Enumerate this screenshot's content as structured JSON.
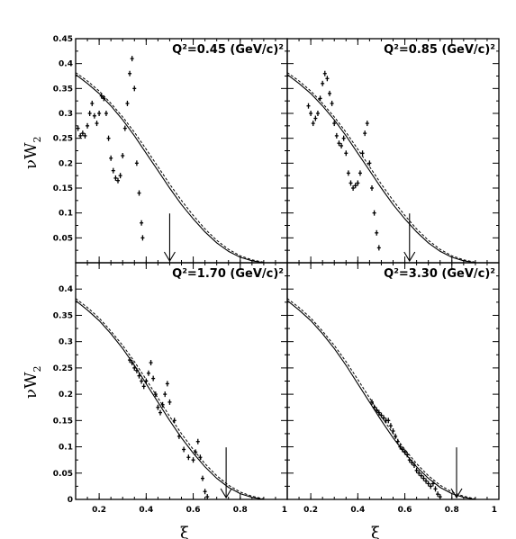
{
  "chart_data": {
    "type": "scatter",
    "xlabel": "ξ",
    "ylabel": "νW",
    "ylabel_sub": "2",
    "xlim": [
      0.1,
      1.0
    ],
    "ylim": [
      0,
      0.45
    ],
    "x_ticks": [
      "0.2",
      "0.4",
      "0.6",
      "0.8",
      "1"
    ],
    "y_ticks": [
      "0.05",
      "0.1",
      "0.15",
      "0.2",
      "0.25",
      "0.3",
      "0.35",
      "0.4",
      "0.45"
    ],
    "y_tick_values": [
      0.05,
      0.1,
      0.15,
      0.2,
      0.25,
      0.3,
      0.35,
      0.4,
      0.45
    ],
    "y_zero_label": "0",
    "panels": [
      {
        "title": "Q²=0.45 (GeV/c)²",
        "arrow_x": 0.5,
        "curve_solid": [
          [
            0.1,
            0.378
          ],
          [
            0.15,
            0.36
          ],
          [
            0.2,
            0.34
          ],
          [
            0.25,
            0.315
          ],
          [
            0.3,
            0.287
          ],
          [
            0.35,
            0.255
          ],
          [
            0.4,
            0.22
          ],
          [
            0.45,
            0.185
          ],
          [
            0.5,
            0.15
          ],
          [
            0.55,
            0.117
          ],
          [
            0.6,
            0.088
          ],
          [
            0.65,
            0.062
          ],
          [
            0.7,
            0.04
          ],
          [
            0.75,
            0.023
          ],
          [
            0.8,
            0.011
          ],
          [
            0.85,
            0.004
          ],
          [
            0.9,
            0.0
          ]
        ],
        "curve_dashed": [
          [
            0.1,
            0.382
          ],
          [
            0.15,
            0.365
          ],
          [
            0.2,
            0.345
          ],
          [
            0.25,
            0.32
          ],
          [
            0.3,
            0.293
          ],
          [
            0.35,
            0.262
          ],
          [
            0.4,
            0.228
          ],
          [
            0.45,
            0.193
          ],
          [
            0.5,
            0.158
          ],
          [
            0.55,
            0.125
          ],
          [
            0.6,
            0.095
          ],
          [
            0.65,
            0.068
          ],
          [
            0.7,
            0.045
          ],
          [
            0.75,
            0.027
          ],
          [
            0.8,
            0.014
          ],
          [
            0.85,
            0.006
          ],
          [
            0.9,
            0.001
          ]
        ],
        "points": [
          [
            0.11,
            0.27
          ],
          [
            0.12,
            0.255
          ],
          [
            0.13,
            0.26
          ],
          [
            0.14,
            0.255
          ],
          [
            0.15,
            0.275
          ],
          [
            0.16,
            0.3
          ],
          [
            0.17,
            0.32
          ],
          [
            0.18,
            0.295
          ],
          [
            0.19,
            0.28
          ],
          [
            0.2,
            0.3
          ],
          [
            0.21,
            0.335
          ],
          [
            0.22,
            0.33
          ],
          [
            0.23,
            0.3
          ],
          [
            0.24,
            0.25
          ],
          [
            0.25,
            0.21
          ],
          [
            0.26,
            0.185
          ],
          [
            0.27,
            0.17
          ],
          [
            0.28,
            0.165
          ],
          [
            0.29,
            0.175
          ],
          [
            0.3,
            0.215
          ],
          [
            0.31,
            0.27
          ],
          [
            0.32,
            0.32
          ],
          [
            0.33,
            0.38
          ],
          [
            0.34,
            0.41
          ],
          [
            0.35,
            0.35
          ],
          [
            0.36,
            0.2
          ],
          [
            0.37,
            0.14
          ],
          [
            0.38,
            0.08
          ],
          [
            0.385,
            0.05
          ]
        ]
      },
      {
        "title": "Q²=0.85 (GeV/c)²",
        "arrow_x": 0.62,
        "curve_solid": [
          [
            0.1,
            0.378
          ],
          [
            0.15,
            0.36
          ],
          [
            0.2,
            0.34
          ],
          [
            0.25,
            0.315
          ],
          [
            0.3,
            0.287
          ],
          [
            0.35,
            0.255
          ],
          [
            0.4,
            0.22
          ],
          [
            0.45,
            0.185
          ],
          [
            0.5,
            0.15
          ],
          [
            0.55,
            0.117
          ],
          [
            0.6,
            0.088
          ],
          [
            0.65,
            0.062
          ],
          [
            0.7,
            0.04
          ],
          [
            0.75,
            0.023
          ],
          [
            0.8,
            0.011
          ],
          [
            0.85,
            0.004
          ],
          [
            0.9,
            0.0
          ]
        ],
        "curve_dashed": [
          [
            0.1,
            0.382
          ],
          [
            0.15,
            0.365
          ],
          [
            0.2,
            0.345
          ],
          [
            0.25,
            0.32
          ],
          [
            0.3,
            0.293
          ],
          [
            0.35,
            0.262
          ],
          [
            0.4,
            0.228
          ],
          [
            0.45,
            0.193
          ],
          [
            0.5,
            0.158
          ],
          [
            0.55,
            0.125
          ],
          [
            0.6,
            0.095
          ],
          [
            0.65,
            0.068
          ],
          [
            0.7,
            0.045
          ],
          [
            0.75,
            0.027
          ],
          [
            0.8,
            0.014
          ],
          [
            0.85,
            0.006
          ],
          [
            0.9,
            0.001
          ]
        ],
        "points": [
          [
            0.19,
            0.315
          ],
          [
            0.2,
            0.3
          ],
          [
            0.21,
            0.28
          ],
          [
            0.22,
            0.29
          ],
          [
            0.23,
            0.3
          ],
          [
            0.24,
            0.33
          ],
          [
            0.25,
            0.36
          ],
          [
            0.26,
            0.38
          ],
          [
            0.27,
            0.37
          ],
          [
            0.28,
            0.34
          ],
          [
            0.29,
            0.32
          ],
          [
            0.3,
            0.28
          ],
          [
            0.31,
            0.255
          ],
          [
            0.32,
            0.24
          ],
          [
            0.33,
            0.235
          ],
          [
            0.34,
            0.25
          ],
          [
            0.35,
            0.22
          ],
          [
            0.36,
            0.18
          ],
          [
            0.37,
            0.16
          ],
          [
            0.38,
            0.15
          ],
          [
            0.39,
            0.155
          ],
          [
            0.4,
            0.16
          ],
          [
            0.41,
            0.18
          ],
          [
            0.42,
            0.22
          ],
          [
            0.43,
            0.26
          ],
          [
            0.44,
            0.28
          ],
          [
            0.45,
            0.2
          ],
          [
            0.46,
            0.15
          ],
          [
            0.47,
            0.1
          ],
          [
            0.48,
            0.06
          ],
          [
            0.49,
            0.03
          ]
        ]
      },
      {
        "title": "Q²=1.70 (GeV/c)²",
        "arrow_x": 0.74,
        "curve_solid": [
          [
            0.1,
            0.378
          ],
          [
            0.15,
            0.36
          ],
          [
            0.2,
            0.34
          ],
          [
            0.25,
            0.315
          ],
          [
            0.3,
            0.287
          ],
          [
            0.35,
            0.255
          ],
          [
            0.4,
            0.22
          ],
          [
            0.45,
            0.185
          ],
          [
            0.5,
            0.15
          ],
          [
            0.55,
            0.117
          ],
          [
            0.6,
            0.088
          ],
          [
            0.65,
            0.062
          ],
          [
            0.7,
            0.04
          ],
          [
            0.75,
            0.023
          ],
          [
            0.8,
            0.011
          ],
          [
            0.85,
            0.004
          ],
          [
            0.9,
            0.0
          ]
        ],
        "curve_dashed": [
          [
            0.1,
            0.382
          ],
          [
            0.15,
            0.365
          ],
          [
            0.2,
            0.345
          ],
          [
            0.25,
            0.32
          ],
          [
            0.3,
            0.293
          ],
          [
            0.35,
            0.262
          ],
          [
            0.4,
            0.228
          ],
          [
            0.45,
            0.193
          ],
          [
            0.5,
            0.158
          ],
          [
            0.55,
            0.125
          ],
          [
            0.6,
            0.095
          ],
          [
            0.65,
            0.068
          ],
          [
            0.7,
            0.045
          ],
          [
            0.75,
            0.027
          ],
          [
            0.8,
            0.014
          ],
          [
            0.85,
            0.006
          ],
          [
            0.9,
            0.001
          ]
        ],
        "points": [
          [
            0.33,
            0.265
          ],
          [
            0.34,
            0.26
          ],
          [
            0.35,
            0.25
          ],
          [
            0.36,
            0.245
          ],
          [
            0.37,
            0.235
          ],
          [
            0.38,
            0.225
          ],
          [
            0.39,
            0.215
          ],
          [
            0.4,
            0.225
          ],
          [
            0.41,
            0.24
          ],
          [
            0.42,
            0.26
          ],
          [
            0.43,
            0.23
          ],
          [
            0.44,
            0.2
          ],
          [
            0.45,
            0.175
          ],
          [
            0.46,
            0.165
          ],
          [
            0.47,
            0.18
          ],
          [
            0.48,
            0.2
          ],
          [
            0.49,
            0.22
          ],
          [
            0.5,
            0.185
          ],
          [
            0.52,
            0.15
          ],
          [
            0.54,
            0.12
          ],
          [
            0.56,
            0.095
          ],
          [
            0.58,
            0.08
          ],
          [
            0.6,
            0.075
          ],
          [
            0.61,
            0.09
          ],
          [
            0.62,
            0.11
          ],
          [
            0.63,
            0.08
          ],
          [
            0.64,
            0.04
          ],
          [
            0.65,
            0.015
          ],
          [
            0.66,
            0.005
          ]
        ]
      },
      {
        "title": "Q²=3.30 (GeV/c)²",
        "arrow_x": 0.82,
        "curve_solid": [
          [
            0.1,
            0.378
          ],
          [
            0.15,
            0.36
          ],
          [
            0.2,
            0.34
          ],
          [
            0.25,
            0.315
          ],
          [
            0.3,
            0.287
          ],
          [
            0.35,
            0.255
          ],
          [
            0.4,
            0.22
          ],
          [
            0.45,
            0.185
          ],
          [
            0.5,
            0.15
          ],
          [
            0.55,
            0.117
          ],
          [
            0.6,
            0.088
          ],
          [
            0.65,
            0.062
          ],
          [
            0.7,
            0.04
          ],
          [
            0.75,
            0.023
          ],
          [
            0.8,
            0.011
          ],
          [
            0.85,
            0.004
          ],
          [
            0.9,
            0.0
          ]
        ],
        "curve_dashed": [
          [
            0.1,
            0.382
          ],
          [
            0.15,
            0.365
          ],
          [
            0.2,
            0.345
          ],
          [
            0.25,
            0.32
          ],
          [
            0.3,
            0.293
          ],
          [
            0.35,
            0.262
          ],
          [
            0.4,
            0.228
          ],
          [
            0.45,
            0.193
          ],
          [
            0.5,
            0.158
          ],
          [
            0.55,
            0.125
          ],
          [
            0.6,
            0.095
          ],
          [
            0.65,
            0.068
          ],
          [
            0.7,
            0.045
          ],
          [
            0.75,
            0.027
          ],
          [
            0.8,
            0.014
          ],
          [
            0.85,
            0.006
          ],
          [
            0.9,
            0.001
          ]
        ],
        "points": [
          [
            0.46,
            0.185
          ],
          [
            0.47,
            0.175
          ],
          [
            0.48,
            0.17
          ],
          [
            0.49,
            0.165
          ],
          [
            0.5,
            0.16
          ],
          [
            0.51,
            0.155
          ],
          [
            0.52,
            0.15
          ],
          [
            0.53,
            0.15
          ],
          [
            0.54,
            0.14
          ],
          [
            0.55,
            0.13
          ],
          [
            0.56,
            0.12
          ],
          [
            0.57,
            0.11
          ],
          [
            0.58,
            0.1
          ],
          [
            0.59,
            0.095
          ],
          [
            0.6,
            0.09
          ],
          [
            0.61,
            0.085
          ],
          [
            0.62,
            0.075
          ],
          [
            0.63,
            0.07
          ],
          [
            0.64,
            0.065
          ],
          [
            0.65,
            0.055
          ],
          [
            0.66,
            0.05
          ],
          [
            0.67,
            0.045
          ],
          [
            0.68,
            0.04
          ],
          [
            0.69,
            0.035
          ],
          [
            0.7,
            0.03
          ],
          [
            0.71,
            0.025
          ],
          [
            0.72,
            0.03
          ],
          [
            0.73,
            0.02
          ],
          [
            0.74,
            0.01
          ],
          [
            0.75,
            0.005
          ]
        ]
      }
    ]
  }
}
